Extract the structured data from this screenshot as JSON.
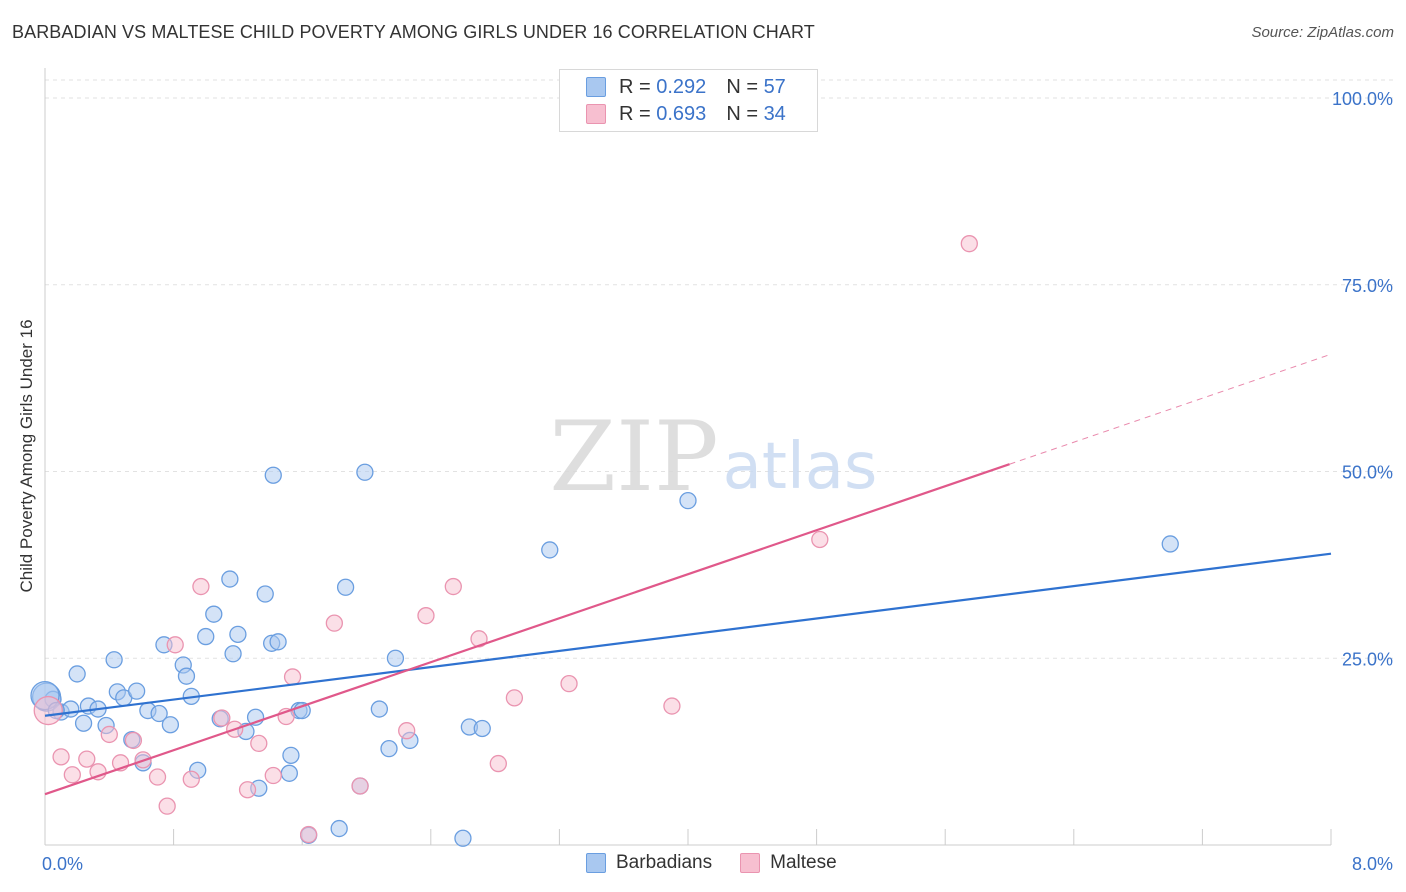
{
  "title": "BARBADIAN VS MALTESE CHILD POVERTY AMONG GIRLS UNDER 16 CORRELATION CHART",
  "source": "Source: ZipAtlas.com",
  "watermark": {
    "zip": "ZIP",
    "atlas": "atlas"
  },
  "legend_top": [
    {
      "r_label": "R =",
      "r_value": "0.292",
      "n_label": "N =",
      "n_value": "57"
    },
    {
      "r_label": "R =",
      "r_value": "0.693",
      "n_label": "N =",
      "n_value": "34"
    }
  ],
  "legend_bottom": {
    "barbadians": "Barbadians",
    "maltese": "Maltese"
  },
  "colors": {
    "barbadian_fill": "#a9c8f0",
    "barbadian_stroke": "#6a9ee0",
    "barbadian_line": "#2f72d0",
    "maltese_fill": "#f7bfd0",
    "maltese_stroke": "#ea94b0",
    "maltese_line": "#e0588a",
    "tick_label": "#3b73c9"
  },
  "chart_data": {
    "type": "scatter",
    "title": "BARBADIAN VS MALTESE CHILD POVERTY AMONG GIRLS UNDER 16 CORRELATION CHART",
    "xlabel": "",
    "ylabel": "Child Poverty Among Girls Under 16",
    "xlim": [
      0,
      8
    ],
    "ylim": [
      0,
      100
    ],
    "x_tick_labels": [
      "0.0%",
      "8.0%"
    ],
    "y_ticks": [
      25,
      50,
      75,
      100
    ],
    "y_tick_labels": [
      "25.0%",
      "50.0%",
      "75.0%",
      "100.0%"
    ],
    "series": [
      {
        "name": "Barbadians",
        "R": 0.292,
        "N": 57,
        "trend": {
          "x": [
            0,
            8
          ],
          "y": [
            17.3,
            39.0
          ],
          "dashed_from": null
        },
        "points": [
          [
            0.01,
            19.8
          ],
          [
            0.05,
            19.5
          ],
          [
            0.1,
            17.8
          ],
          [
            0.16,
            18.2
          ],
          [
            0.2,
            22.9
          ],
          [
            0.24,
            16.3
          ],
          [
            0.27,
            18.6
          ],
          [
            0.33,
            18.2
          ],
          [
            0.38,
            16.0
          ],
          [
            0.43,
            24.8
          ],
          [
            0.45,
            20.5
          ],
          [
            0.49,
            19.7
          ],
          [
            0.54,
            14.1
          ],
          [
            0.57,
            20.6
          ],
          [
            0.61,
            11.0
          ],
          [
            0.64,
            18.0
          ],
          [
            0.71,
            17.6
          ],
          [
            0.74,
            26.8
          ],
          [
            0.78,
            16.1
          ],
          [
            0.86,
            24.1
          ],
          [
            0.88,
            22.6
          ],
          [
            0.91,
            19.9
          ],
          [
            0.95,
            10.0
          ],
          [
            1.0,
            27.9
          ],
          [
            1.05,
            30.9
          ],
          [
            1.09,
            16.9
          ],
          [
            1.15,
            35.6
          ],
          [
            1.17,
            25.6
          ],
          [
            1.2,
            28.2
          ],
          [
            1.25,
            15.2
          ],
          [
            1.31,
            17.1
          ],
          [
            1.33,
            7.6
          ],
          [
            1.37,
            33.6
          ],
          [
            1.41,
            27.0
          ],
          [
            1.42,
            49.5
          ],
          [
            1.45,
            27.2
          ],
          [
            1.52,
            9.6
          ],
          [
            1.53,
            12.0
          ],
          [
            1.58,
            18.0
          ],
          [
            1.6,
            18.0
          ],
          [
            1.64,
            1.3
          ],
          [
            1.83,
            2.2
          ],
          [
            1.87,
            34.5
          ],
          [
            1.96,
            7.9
          ],
          [
            1.99,
            49.9
          ],
          [
            2.08,
            18.2
          ],
          [
            2.14,
            12.9
          ],
          [
            2.18,
            25.0
          ],
          [
            2.27,
            14.0
          ],
          [
            2.6,
            0.9
          ],
          [
            2.64,
            15.8
          ],
          [
            2.72,
            15.6
          ],
          [
            3.14,
            39.5
          ],
          [
            4.0,
            46.1
          ],
          [
            7.0,
            40.3
          ],
          [
            0.0,
            20.0
          ],
          [
            0.07,
            18.0
          ]
        ]
      },
      {
        "name": "Maltese",
        "R": 0.693,
        "N": 34,
        "trend": {
          "x": [
            0,
            8
          ],
          "y": [
            6.8,
            65.7
          ],
          "dashed_from": 6.0
        },
        "points": [
          [
            0.02,
            18.0
          ],
          [
            0.1,
            11.8
          ],
          [
            0.17,
            9.4
          ],
          [
            0.26,
            11.5
          ],
          [
            0.33,
            9.8
          ],
          [
            0.4,
            14.8
          ],
          [
            0.47,
            11.0
          ],
          [
            0.55,
            14.0
          ],
          [
            0.61,
            11.4
          ],
          [
            0.7,
            9.1
          ],
          [
            0.76,
            5.2
          ],
          [
            0.81,
            26.8
          ],
          [
            0.91,
            8.8
          ],
          [
            0.97,
            34.6
          ],
          [
            1.1,
            17.0
          ],
          [
            1.18,
            15.5
          ],
          [
            1.26,
            7.4
          ],
          [
            1.33,
            13.6
          ],
          [
            1.42,
            9.3
          ],
          [
            1.5,
            17.2
          ],
          [
            1.54,
            22.5
          ],
          [
            1.64,
            1.4
          ],
          [
            1.8,
            29.7
          ],
          [
            1.96,
            7.9
          ],
          [
            2.25,
            15.3
          ],
          [
            2.37,
            30.7
          ],
          [
            2.54,
            34.6
          ],
          [
            2.7,
            27.6
          ],
          [
            2.82,
            10.9
          ],
          [
            2.92,
            19.7
          ],
          [
            3.26,
            21.6
          ],
          [
            3.9,
            18.6
          ],
          [
            4.82,
            40.9
          ],
          [
            5.75,
            80.5
          ]
        ]
      }
    ]
  }
}
